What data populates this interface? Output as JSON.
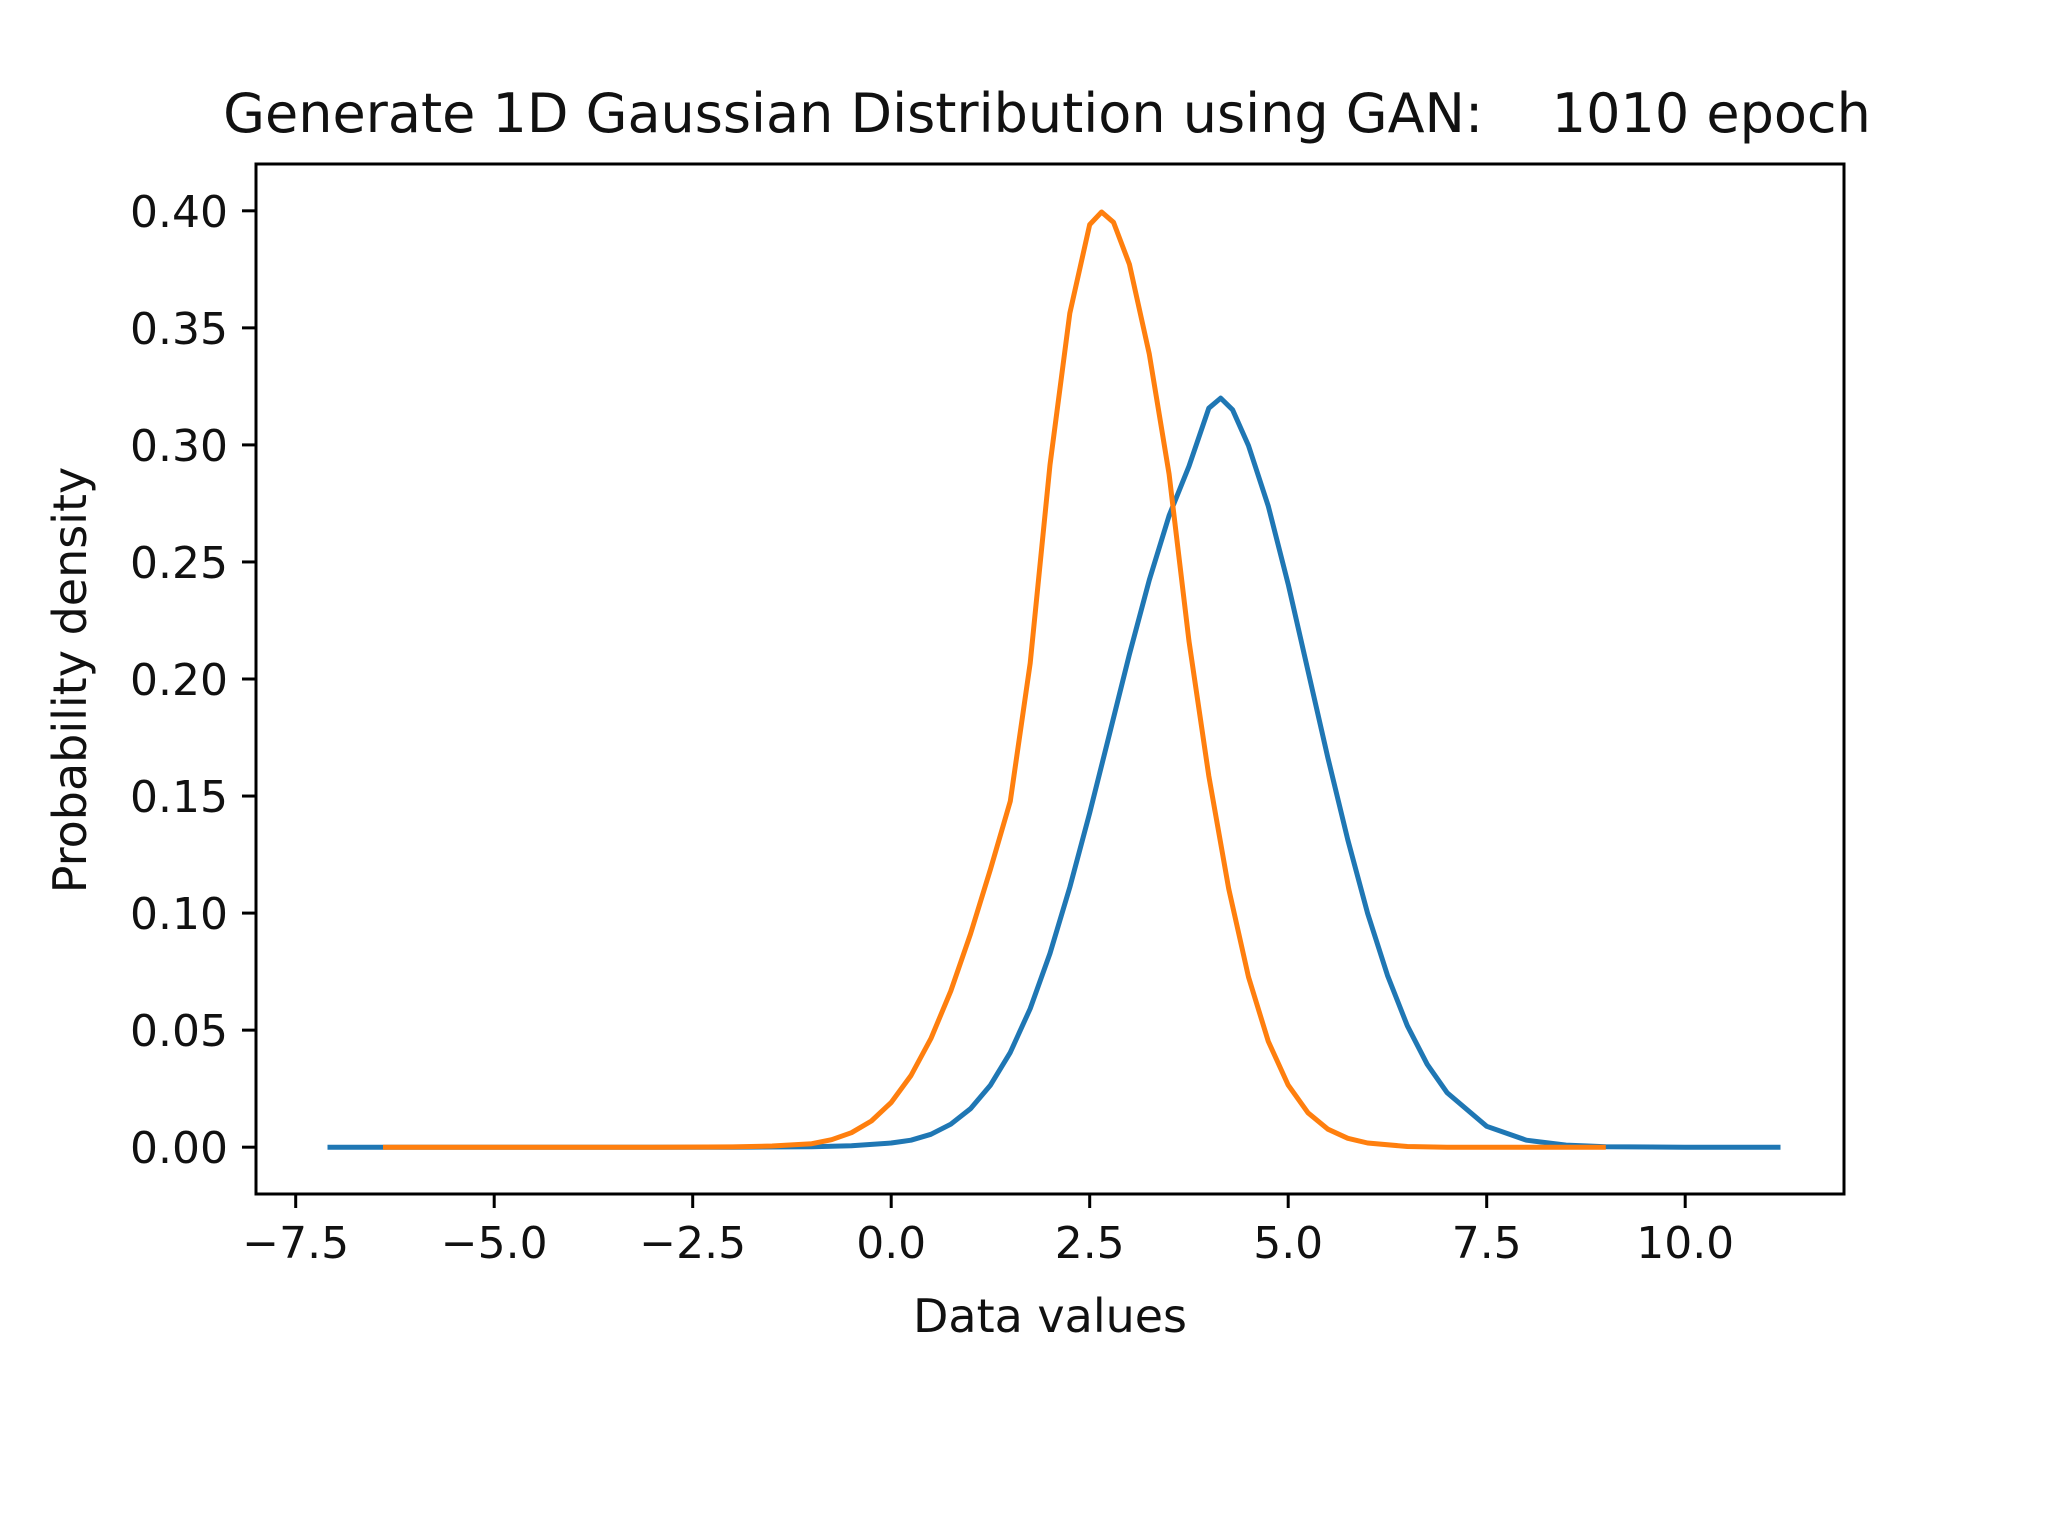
{
  "chart_data": {
    "type": "line",
    "title": "Generate 1D Gaussian Distribution using GAN:    1010 epoch",
    "xlabel": "Data values",
    "ylabel": "Probability density",
    "xlim": [
      -8.0,
      12.0
    ],
    "ylim": [
      -0.02,
      0.42
    ],
    "grid": false,
    "xticks": [
      -7.5,
      -5.0,
      -2.5,
      0.0,
      2.5,
      5.0,
      7.5,
      10.0
    ],
    "xtick_labels": [
      "−7.5",
      "−5.0",
      "−2.5",
      "0.0",
      "2.5",
      "5.0",
      "7.5",
      "10.0"
    ],
    "yticks": [
      0.0,
      0.05,
      0.1,
      0.15,
      0.2,
      0.25,
      0.3,
      0.35,
      0.4
    ],
    "ytick_labels": [
      "0.00",
      "0.05",
      "0.10",
      "0.15",
      "0.20",
      "0.25",
      "0.30",
      "0.35",
      "0.40"
    ],
    "series": [
      {
        "color": "#1f77b4",
        "x": [
          -7.1,
          -6.0,
          -5.0,
          -4.0,
          -3.0,
          -2.0,
          -1.0,
          -0.5,
          0.0,
          0.25,
          0.5,
          0.75,
          1.0,
          1.25,
          1.5,
          1.75,
          2.0,
          2.25,
          2.5,
          2.75,
          3.0,
          3.25,
          3.5,
          3.75,
          4.0,
          4.15,
          4.3,
          4.5,
          4.75,
          5.0,
          5.25,
          5.5,
          5.75,
          6.0,
          6.25,
          6.5,
          6.75,
          7.0,
          7.5,
          8.0,
          8.5,
          9.0,
          10.0,
          11.2
        ],
        "y": [
          0.0,
          0.0,
          0.0,
          0.0,
          0.0,
          0.0,
          0.0002,
          0.0006,
          0.0018,
          0.003,
          0.0055,
          0.0098,
          0.0165,
          0.0265,
          0.0405,
          0.0592,
          0.0828,
          0.111,
          0.1428,
          0.1765,
          0.2105,
          0.2423,
          0.2698,
          0.2909,
          0.3157,
          0.32,
          0.315,
          0.2997,
          0.2738,
          0.2405,
          0.2035,
          0.1663,
          0.1313,
          0.0999,
          0.0734,
          0.0519,
          0.0354,
          0.0233,
          0.0089,
          0.003,
          0.0009,
          0.0002,
          0.0,
          0.0
        ]
      },
      {
        "color": "#ff7f0e",
        "x": [
          -6.4,
          -5.0,
          -3.0,
          -2.0,
          -1.5,
          -1.0,
          -0.75,
          -0.5,
          -0.25,
          0.0,
          0.25,
          0.5,
          0.75,
          1.0,
          1.25,
          1.5,
          1.75,
          2.0,
          2.25,
          2.5,
          2.65,
          2.8,
          3.0,
          3.25,
          3.5,
          3.75,
          4.0,
          4.25,
          4.5,
          4.75,
          5.0,
          5.25,
          5.5,
          5.75,
          6.0,
          6.5,
          7.0,
          8.0,
          9.0
        ],
        "y": [
          0.0,
          0.0,
          0.0,
          0.0001,
          0.0005,
          0.0015,
          0.0032,
          0.0062,
          0.0112,
          0.0191,
          0.0306,
          0.0464,
          0.0667,
          0.0912,
          0.1188,
          0.1478,
          0.2068,
          0.2915,
          0.3562,
          0.3941,
          0.3995,
          0.3951,
          0.3772,
          0.3388,
          0.2875,
          0.2161,
          0.1586,
          0.1104,
          0.0727,
          0.0452,
          0.0265,
          0.0147,
          0.0077,
          0.0038,
          0.0018,
          0.0003,
          0.0,
          0.0,
          0.0
        ]
      }
    ]
  }
}
